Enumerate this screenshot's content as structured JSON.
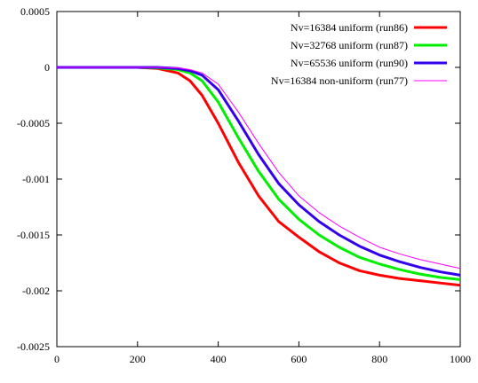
{
  "chart_data": {
    "type": "line",
    "title": "",
    "xlabel": "",
    "ylabel": "",
    "xlim": [
      0,
      1000
    ],
    "ylim": [
      -0.0025,
      0.0005
    ],
    "xticks": [
      0,
      200,
      400,
      600,
      800,
      1000
    ],
    "xtick_labels": [
      "0",
      "200",
      "400",
      "600",
      "800",
      "1000"
    ],
    "yticks": [
      0.0005,
      0,
      -0.0005,
      -0.001,
      -0.0015,
      -0.002,
      -0.0025
    ],
    "ytick_labels": [
      "0.0005",
      "0",
      "-0.0005",
      "-0.001",
      "-0.0015",
      "-0.002",
      "-0.0025"
    ],
    "grid": false,
    "legend_position": "top-right",
    "series": [
      {
        "name": "Nv=16384 uniform (run86)",
        "color": "#ff0000",
        "x": [
          0,
          100,
          200,
          250,
          300,
          330,
          360,
          400,
          450,
          500,
          550,
          600,
          650,
          700,
          750,
          800,
          850,
          900,
          950,
          1000
        ],
        "y": [
          0,
          0,
          0,
          -1e-05,
          -5e-05,
          -0.00012,
          -0.00025,
          -0.0005,
          -0.00085,
          -0.00115,
          -0.00138,
          -0.00152,
          -0.00165,
          -0.00175,
          -0.00182,
          -0.00186,
          -0.00189,
          -0.00191,
          -0.00193,
          -0.00195
        ]
      },
      {
        "name": "Nv=32768 uniform (run87)",
        "color": "#00ee00",
        "x": [
          0,
          100,
          200,
          250,
          300,
          330,
          360,
          400,
          450,
          500,
          550,
          600,
          650,
          700,
          750,
          800,
          850,
          900,
          950,
          1000
        ],
        "y": [
          0,
          0,
          0,
          -5e-06,
          -2e-05,
          -5e-05,
          -0.00012,
          -0.00031,
          -0.00063,
          -0.00093,
          -0.00118,
          -0.00136,
          -0.0015,
          -0.00161,
          -0.0017,
          -0.00176,
          -0.00181,
          -0.00185,
          -0.00188,
          -0.0019
        ]
      },
      {
        "name": "Nv=65536 uniform (run90)",
        "color": "#3300ee",
        "x": [
          0,
          100,
          200,
          250,
          300,
          330,
          360,
          400,
          450,
          500,
          550,
          600,
          650,
          700,
          750,
          800,
          850,
          900,
          950,
          1000
        ],
        "y": [
          0,
          0,
          0,
          0,
          -1e-05,
          -3e-05,
          -7e-05,
          -0.0002,
          -0.00048,
          -0.00078,
          -0.00104,
          -0.00123,
          -0.00138,
          -0.0015,
          -0.0016,
          -0.00168,
          -0.00174,
          -0.00179,
          -0.00183,
          -0.00186
        ]
      },
      {
        "name": "Nv=16384 non-uniform (run77)",
        "color": "#ff00ff",
        "x": [
          0,
          100,
          200,
          250,
          300,
          330,
          360,
          400,
          450,
          500,
          550,
          600,
          650,
          700,
          750,
          800,
          850,
          900,
          950,
          1000
        ],
        "y": [
          0,
          0,
          0,
          0,
          -5e-06,
          -2e-05,
          -5e-05,
          -0.00015,
          -0.0004,
          -0.00068,
          -0.00094,
          -0.00115,
          -0.0013,
          -0.00142,
          -0.00152,
          -0.00161,
          -0.00167,
          -0.00172,
          -0.00176,
          -0.0018
        ]
      }
    ]
  }
}
